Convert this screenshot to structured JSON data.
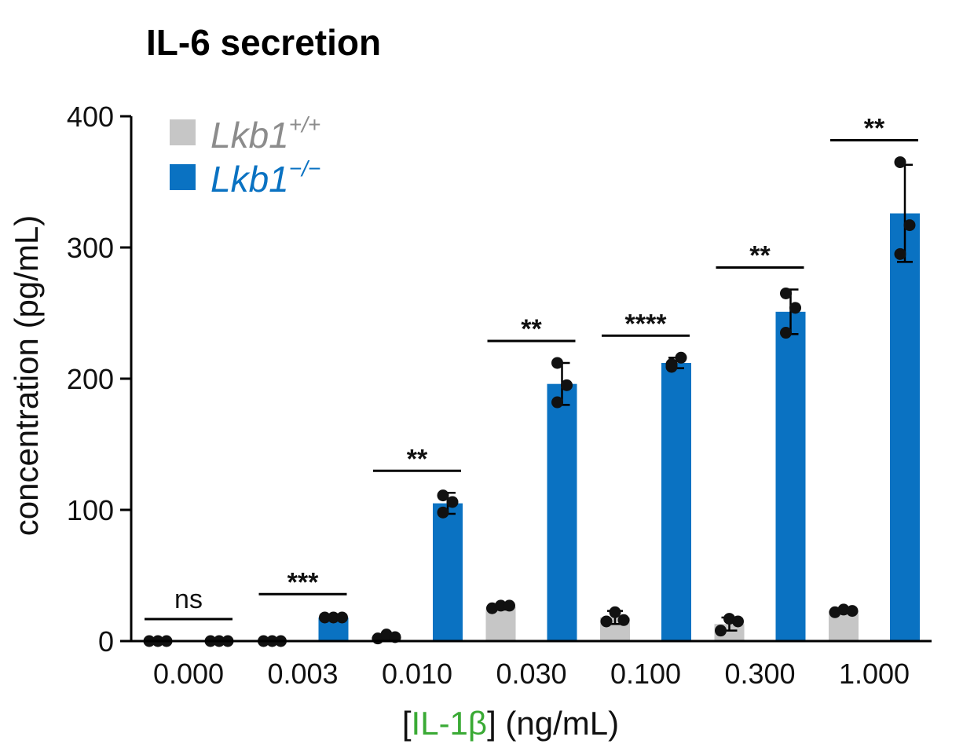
{
  "chart_data": {
    "type": "bar",
    "title": "IL-6 secretion",
    "ylabel": "concentration (pg/mL)",
    "xlabel": {
      "open": "[",
      "highlight": "IL-1β",
      "close": "] (ng/mL)"
    },
    "ylim": [
      0,
      400
    ],
    "yticks": [
      "0",
      "100",
      "200",
      "300",
      "400"
    ],
    "categories": [
      "0.000",
      "0.003",
      "0.010",
      "0.030",
      "0.100",
      "0.300",
      "1.000"
    ],
    "series": [
      {
        "name": "Lkb1",
        "superscript": "+/+",
        "color": "#c6c6c6",
        "text_color": "#8c8c8c",
        "values": [
          0,
          0,
          3,
          26,
          18,
          13,
          23
        ],
        "errors": [
          0,
          0,
          2,
          2,
          5,
          5,
          1
        ],
        "points": [
          [
            0,
            0,
            0
          ],
          [
            0,
            0,
            0
          ],
          [
            2,
            5,
            3
          ],
          [
            25,
            27,
            27
          ],
          [
            15,
            22,
            16
          ],
          [
            8,
            17,
            15
          ],
          [
            22,
            24,
            23
          ]
        ]
      },
      {
        "name": "Lkb1",
        "superscript": "−/−",
        "color": "#0a72c2",
        "text_color": "#0a72c2",
        "values": [
          0,
          18,
          105,
          196,
          212,
          251,
          326
        ],
        "errors": [
          0,
          1,
          8,
          16,
          4,
          17,
          37
        ],
        "points": [
          [
            0,
            0,
            0
          ],
          [
            18,
            18,
            18
          ],
          [
            111,
            106,
            98
          ],
          [
            212,
            195,
            182
          ],
          [
            209,
            216,
            211
          ],
          [
            265,
            254,
            235
          ],
          [
            365,
            317,
            295
          ]
        ]
      }
    ],
    "significance": [
      "ns",
      "***",
      "**",
      "**",
      "****",
      "**",
      "**"
    ],
    "legend_position": "top-left",
    "grid": false,
    "accent_colors": {
      "highlight": "#3aaa35",
      "axis": "#000000"
    }
  }
}
